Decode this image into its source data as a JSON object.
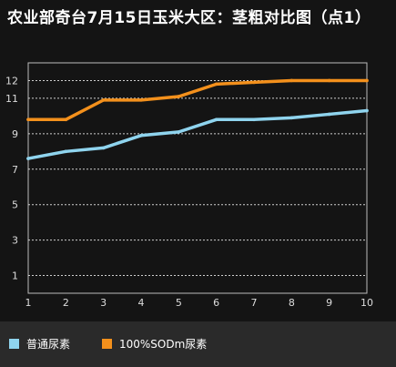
{
  "title": "农业部奇台7月15日玉米大区：茎粗对比图（点1）",
  "colors": {
    "background": "#141414",
    "plot_border": "#bbbbbb",
    "grid": "#cfcfcf",
    "tick_text": "#dddddd",
    "legend_bg": "#2a2a2a"
  },
  "chart_data": {
    "type": "line",
    "title": "农业部奇台7月15日玉米大区：茎粗对比图（点1）",
    "xlabel": "",
    "ylabel": "",
    "x": [
      1,
      2,
      3,
      4,
      5,
      6,
      7,
      8,
      9,
      10
    ],
    "ylim": [
      0,
      13
    ],
    "yticks": [
      1,
      3,
      5,
      7,
      9,
      11,
      12
    ],
    "grid": true,
    "legend_position": "bottom",
    "series": [
      {
        "name": "普通尿素",
        "color": "#8fd4ee",
        "values": [
          7.6,
          8.0,
          8.2,
          8.9,
          9.1,
          9.8,
          9.8,
          9.9,
          10.1,
          10.3
        ]
      },
      {
        "name": "100%SODm尿素",
        "color": "#f3901c",
        "values": [
          9.8,
          9.8,
          10.9,
          10.9,
          11.1,
          11.8,
          11.9,
          12.0,
          12.0,
          12.0
        ]
      }
    ]
  }
}
